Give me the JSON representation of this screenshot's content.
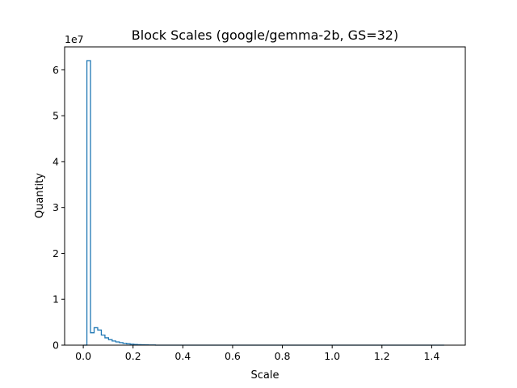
{
  "chart_data": {
    "type": "histogram",
    "title": "Block Scales (google/gemma-2b, GS=32)",
    "xlabel": "Scale",
    "ylabel": "Quantity",
    "y_offset_label": "1e7",
    "xlim": [
      -0.075,
      1.535
    ],
    "ylim": [
      0,
      6.5
    ],
    "x_ticks": [
      0.0,
      0.2,
      0.4,
      0.6,
      0.8,
      1.0,
      1.2,
      1.4
    ],
    "x_tick_labels": [
      "0.0",
      "0.2",
      "0.4",
      "0.6",
      "0.8",
      "1.0",
      "1.2",
      "1.4"
    ],
    "y_ticks": [
      0,
      1,
      2,
      3,
      4,
      5,
      6
    ],
    "y_tick_labels": [
      "0",
      "1",
      "2",
      "3",
      "4",
      "5",
      "6"
    ],
    "y_unit": "1e7",
    "histtype": "step",
    "color": "#1f77b4",
    "grid": false,
    "bin_width": 0.0145,
    "x_start": 0.0,
    "x_end": 1.45,
    "counts": [
      0,
      6.2,
      0.27,
      0.38,
      0.33,
      0.22,
      0.16,
      0.12,
      0.09,
      0.07,
      0.055,
      0.04,
      0.03,
      0.022,
      0.016,
      0.011,
      0.008,
      0.006,
      0.004,
      0.003
    ]
  }
}
